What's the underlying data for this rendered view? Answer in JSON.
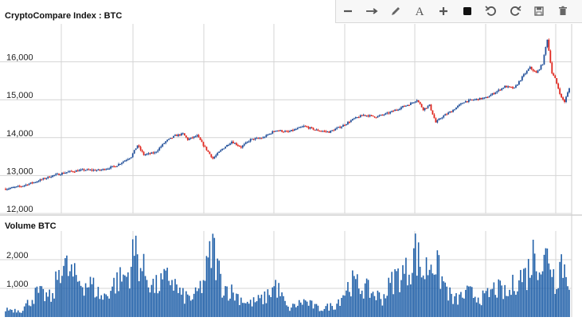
{
  "toolbar": {
    "items": [
      {
        "icon": "minus-icon"
      },
      {
        "icon": "arrow-right-icon"
      },
      {
        "icon": "pencil-icon"
      },
      {
        "icon": "text-icon",
        "glyph": "A"
      },
      {
        "icon": "plus-icon"
      },
      {
        "icon": "square-fill-icon"
      },
      {
        "icon": "undo-icon"
      },
      {
        "icon": "redo-icon"
      },
      {
        "icon": "save-icon"
      },
      {
        "icon": "trash-icon"
      }
    ]
  },
  "chart_data": [
    {
      "type": "candlestick",
      "title": "CryptoCompare Index : BTC",
      "ylim": [
        12000,
        17000
      ],
      "yticks": [
        12000,
        13000,
        14000,
        15000,
        16000
      ],
      "ytick_labels": [
        "12,000",
        "13,000",
        "14,000",
        "15,000",
        "16,000"
      ],
      "grid": true,
      "colors": {
        "up": "#1f4e99",
        "down": "#e0241b"
      },
      "close_anchors": [
        [
          0,
          12650
        ],
        [
          10,
          12720
        ],
        [
          20,
          12850
        ],
        [
          30,
          13000
        ],
        [
          40,
          13100
        ],
        [
          50,
          13150
        ],
        [
          60,
          13140
        ],
        [
          70,
          13250
        ],
        [
          80,
          13500
        ],
        [
          84,
          13800
        ],
        [
          88,
          13550
        ],
        [
          95,
          13600
        ],
        [
          102,
          13900
        ],
        [
          108,
          14050
        ],
        [
          113,
          14100
        ],
        [
          116,
          13950
        ],
        [
          122,
          14050
        ],
        [
          126,
          13800
        ],
        [
          132,
          13450
        ],
        [
          138,
          13700
        ],
        [
          144,
          13900
        ],
        [
          150,
          13750
        ],
        [
          156,
          13950
        ],
        [
          164,
          14000
        ],
        [
          172,
          14200
        ],
        [
          180,
          14150
        ],
        [
          190,
          14300
        ],
        [
          198,
          14200
        ],
        [
          206,
          14150
        ],
        [
          214,
          14300
        ],
        [
          222,
          14500
        ],
        [
          228,
          14600
        ],
        [
          236,
          14550
        ],
        [
          244,
          14650
        ],
        [
          252,
          14800
        ],
        [
          258,
          14900
        ],
        [
          262,
          15000
        ],
        [
          266,
          14750
        ],
        [
          270,
          14850
        ],
        [
          274,
          14400
        ],
        [
          278,
          14550
        ],
        [
          284,
          14700
        ],
        [
          292,
          14950
        ],
        [
          298,
          15000
        ],
        [
          306,
          15050
        ],
        [
          312,
          15200
        ],
        [
          318,
          15350
        ],
        [
          324,
          15300
        ],
        [
          330,
          15650
        ],
        [
          334,
          15850
        ],
        [
          338,
          15700
        ],
        [
          342,
          15950
        ],
        [
          345,
          16600
        ],
        [
          348,
          15700
        ],
        [
          350,
          15550
        ],
        [
          352,
          15300
        ],
        [
          354,
          15050
        ],
        [
          356,
          14950
        ],
        [
          359,
          15300
        ]
      ],
      "candle_count": 360
    },
    {
      "type": "bar",
      "title": "Volume BTC",
      "ylim": [
        0,
        3000
      ],
      "yticks": [
        1000,
        2000
      ],
      "ytick_labels": [
        "1,000",
        "2,000"
      ],
      "grid": true,
      "color": "#1f5fa8",
      "volume_anchors": [
        [
          0,
          300
        ],
        [
          10,
          250
        ],
        [
          20,
          900
        ],
        [
          30,
          700
        ],
        [
          35,
          2050
        ],
        [
          45,
          1400
        ],
        [
          55,
          1200
        ],
        [
          62,
          700
        ],
        [
          70,
          1300
        ],
        [
          78,
          1600
        ],
        [
          83,
          2600
        ],
        [
          86,
          1900
        ],
        [
          95,
          1100
        ],
        [
          105,
          1500
        ],
        [
          112,
          800
        ],
        [
          120,
          700
        ],
        [
          126,
          1300
        ],
        [
          132,
          2600
        ],
        [
          138,
          1200
        ],
        [
          145,
          900
        ],
        [
          155,
          500
        ],
        [
          165,
          700
        ],
        [
          172,
          1200
        ],
        [
          180,
          300
        ],
        [
          190,
          600
        ],
        [
          200,
          300
        ],
        [
          210,
          450
        ],
        [
          220,
          1300
        ],
        [
          228,
          1100
        ],
        [
          240,
          700
        ],
        [
          248,
          1500
        ],
        [
          256,
          1700
        ],
        [
          261,
          2500
        ],
        [
          266,
          1600
        ],
        [
          272,
          2250
        ],
        [
          278,
          1400
        ],
        [
          285,
          600
        ],
        [
          295,
          900
        ],
        [
          305,
          700
        ],
        [
          312,
          1100
        ],
        [
          320,
          800
        ],
        [
          326,
          1500
        ],
        [
          332,
          1600
        ],
        [
          337,
          2500
        ],
        [
          342,
          1900
        ],
        [
          346,
          2500
        ],
        [
          350,
          1300
        ],
        [
          354,
          2200
        ],
        [
          357,
          1600
        ],
        [
          359,
          1500
        ]
      ],
      "bar_count": 360
    }
  ]
}
